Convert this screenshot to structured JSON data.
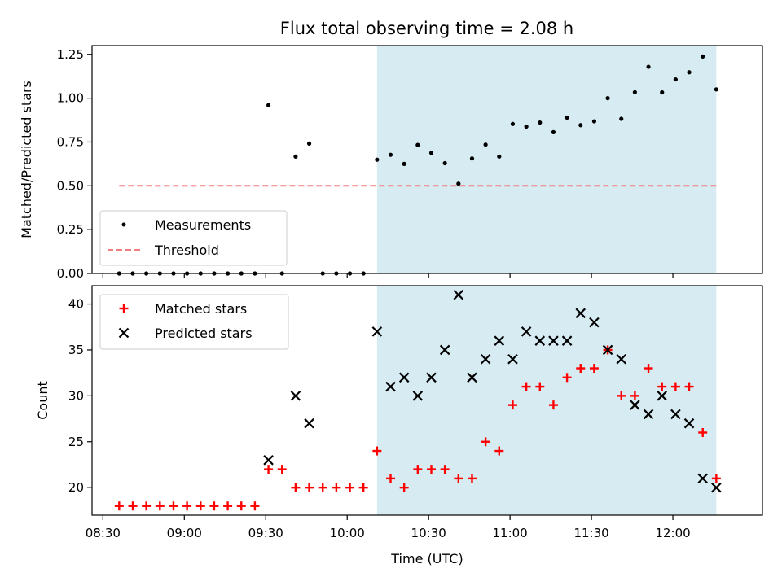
{
  "chart_data": [
    {
      "type": "scatter",
      "title": "Flux total observing time = 2.08 h",
      "ylabel": "Matched/Predicted stars",
      "xlabel": "",
      "xlim": [
        "08:26",
        "12:33"
      ],
      "ylim": [
        0,
        1.3
      ],
      "yticks": [
        "0.00",
        "0.25",
        "0.50",
        "0.75",
        "1.00",
        "1.25"
      ],
      "shaded_interval": [
        "10:11",
        "12:16"
      ],
      "shade_color": "#add8e6",
      "threshold": {
        "name": "Threshold",
        "value": 0.5,
        "x_range": [
          "08:36",
          "12:16"
        ],
        "color": "#f08080"
      },
      "legend": "lower-left",
      "series": [
        {
          "name": "Measurements",
          "color": "#000000",
          "x": [
            "08:36",
            "08:41",
            "08:46",
            "08:51",
            "08:56",
            "09:01",
            "09:06",
            "09:11",
            "09:16",
            "09:21",
            "09:26",
            "09:31",
            "09:36",
            "09:41",
            "09:46",
            "09:51",
            "09:56",
            "10:01",
            "10:06",
            "10:11",
            "10:16",
            "10:21",
            "10:26",
            "10:31",
            "10:36",
            "10:41",
            "10:46",
            "10:51",
            "10:56",
            "11:01",
            "11:06",
            "11:11",
            "11:16",
            "11:21",
            "11:26",
            "11:31",
            "11:36",
            "11:41",
            "11:46",
            "11:51",
            "11:56",
            "12:01",
            "12:06",
            "12:11",
            "12:16"
          ],
          "y": [
            0,
            0,
            0,
            0,
            0,
            0,
            0,
            0,
            0,
            0,
            0,
            0.96,
            0,
            0.667,
            0.741,
            0,
            0,
            0,
            0,
            0.649,
            0.677,
            0.625,
            0.733,
            0.688,
            0.629,
            0.512,
            0.656,
            0.735,
            0.667,
            0.853,
            0.838,
            0.861,
            0.806,
            0.889,
            0.846,
            0.868,
            1.0,
            0.882,
            1.034,
            1.179,
            1.033,
            1.107,
            1.148,
            1.238,
            1.05
          ]
        }
      ]
    },
    {
      "type": "scatter",
      "title": "",
      "ylabel": "Count",
      "xlabel": "Time (UTC)",
      "xlim": [
        "08:26",
        "12:33"
      ],
      "ylim": [
        17,
        42
      ],
      "yticks": [
        "20",
        "25",
        "30",
        "35",
        "40"
      ],
      "xticks": [
        "08:30",
        "09:00",
        "09:30",
        "10:00",
        "10:30",
        "11:00",
        "11:30",
        "12:00"
      ],
      "shaded_interval": [
        "10:11",
        "12:16"
      ],
      "shade_color": "#add8e6",
      "legend": "upper-left",
      "series": [
        {
          "name": "Matched stars",
          "marker": "plus",
          "color": "#ff0000",
          "x": [
            "08:36",
            "08:41",
            "08:46",
            "08:51",
            "08:56",
            "09:01",
            "09:06",
            "09:11",
            "09:16",
            "09:21",
            "09:26",
            "09:31",
            "09:36",
            "09:41",
            "09:46",
            "09:51",
            "09:56",
            "10:01",
            "10:06",
            "10:11",
            "10:16",
            "10:21",
            "10:26",
            "10:31",
            "10:36",
            "10:41",
            "10:46",
            "10:51",
            "10:56",
            "11:01",
            "11:06",
            "11:11",
            "11:16",
            "11:21",
            "11:26",
            "11:31",
            "11:36",
            "11:41",
            "11:46",
            "11:51",
            "11:56",
            "12:01",
            "12:06",
            "12:11",
            "12:16"
          ],
          "y": [
            18,
            18,
            18,
            18,
            18,
            18,
            18,
            18,
            18,
            18,
            18,
            22,
            22,
            20,
            20,
            20,
            20,
            20,
            20,
            24,
            21,
            20,
            22,
            22,
            22,
            21,
            21,
            25,
            24,
            29,
            31,
            31,
            29,
            32,
            33,
            33,
            35,
            30,
            30,
            33,
            31,
            31,
            31,
            26,
            21
          ]
        },
        {
          "name": "Predicted stars",
          "marker": "x",
          "color": "#000000",
          "x": [
            "09:31",
            "09:41",
            "09:46",
            "10:11",
            "10:16",
            "10:21",
            "10:26",
            "10:31",
            "10:36",
            "10:41",
            "10:46",
            "10:51",
            "10:56",
            "11:01",
            "11:06",
            "11:11",
            "11:16",
            "11:21",
            "11:26",
            "11:31",
            "11:36",
            "11:41",
            "11:46",
            "11:51",
            "11:56",
            "12:01",
            "12:06",
            "12:11",
            "12:16"
          ],
          "y": [
            23,
            30,
            27,
            37,
            31,
            32,
            30,
            32,
            35,
            41,
            32,
            34,
            36,
            34,
            37,
            36,
            36,
            36,
            39,
            38,
            35,
            34,
            29,
            28,
            30,
            28,
            27,
            21,
            20
          ]
        }
      ]
    }
  ]
}
